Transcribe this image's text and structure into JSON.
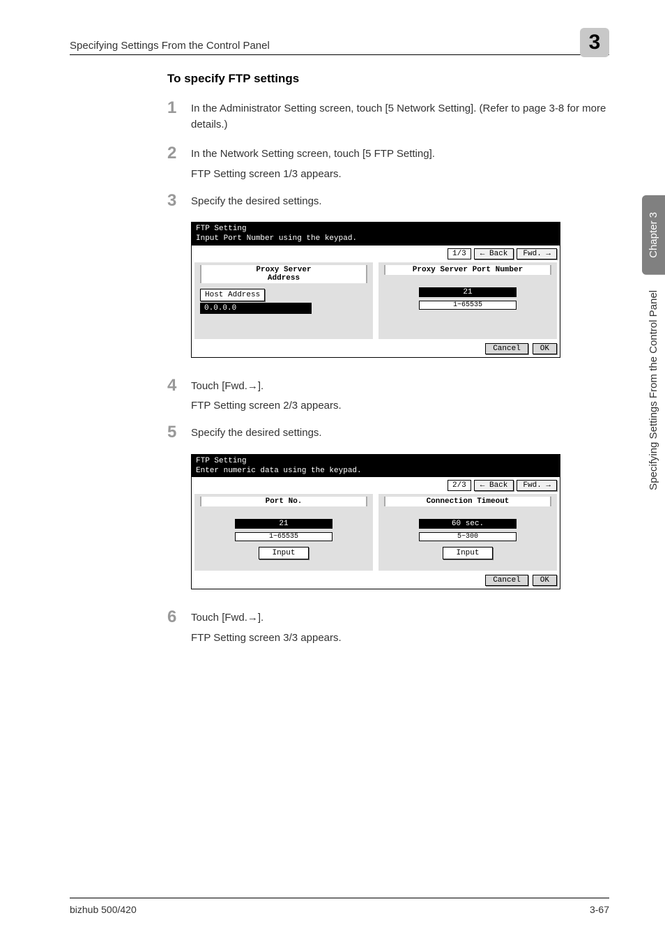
{
  "header": {
    "title": "Specifying Settings From the Control Panel",
    "chapter_number": "3"
  },
  "section": {
    "title": "To specify FTP settings"
  },
  "steps": [
    {
      "num": "1",
      "text": "In the Administrator Setting screen, touch [5 Network Setting]. (Refer to page 3-8 for more details.)"
    },
    {
      "num": "2",
      "text": "In the Network Setting screen, touch [5 FTP Setting].",
      "sub": "FTP Setting screen 1/3 appears."
    },
    {
      "num": "3",
      "text": "Specify the desired settings."
    },
    {
      "num": "4",
      "text": "Touch [Fwd.→].",
      "sub": "FTP Setting screen 2/3 appears."
    },
    {
      "num": "5",
      "text": "Specify the desired settings."
    },
    {
      "num": "6",
      "text": "Touch [Fwd.→].",
      "sub": "FTP Setting screen 3/3 appears."
    }
  ],
  "lcd1": {
    "title1": "FTP Setting",
    "title2": "Input Port Number using the keypad.",
    "page": "1/3",
    "back": "← Back",
    "fwd": "Fwd. →",
    "left_header": "Proxy Server\nAddress",
    "host_btn": "Host Address",
    "host_value": "0.0.0.0",
    "right_header": "Proxy Server Port Number",
    "value": "21",
    "range": "1~65535",
    "cancel": "Cancel",
    "ok": "OK"
  },
  "lcd2": {
    "title1": "FTP Setting",
    "title2": "Enter numeric data using the keypad.",
    "page": "2/3",
    "back": "← Back",
    "fwd": "Fwd. →",
    "left_header": "Port No.",
    "left_value": "21",
    "left_range": "1~65535",
    "input": "Input",
    "right_header": "Connection Timeout",
    "right_value": "60 sec.",
    "right_range": "5~300",
    "cancel": "Cancel",
    "ok": "OK"
  },
  "side": {
    "chapter": "Chapter 3",
    "text": "Specifying Settings From the Control Panel"
  },
  "footer": {
    "left": "bizhub 500/420",
    "right": "3-67"
  }
}
